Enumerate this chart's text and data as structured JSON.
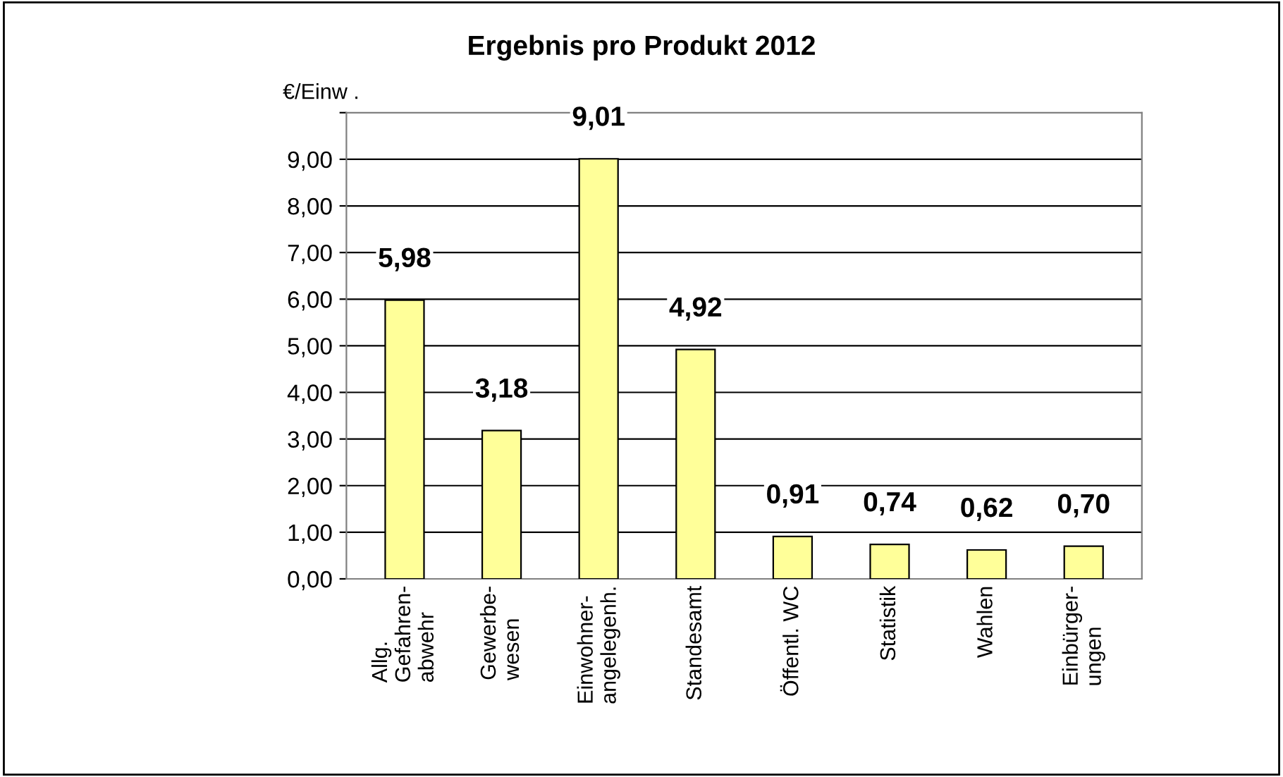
{
  "chart_data": {
    "type": "bar",
    "title": "Ergebnis pro Produkt 2012",
    "ylabel": "€/Einw .",
    "categories": [
      "Allg.\nGefahren-\nabwehr",
      "Gewerbe-\nwesen",
      "Einwohner-\nangelegenh.",
      "Standesamt",
      "Öffentl. WC",
      "Statistik",
      "Wahlen",
      "Einbürger-\nungen"
    ],
    "values": [
      5.98,
      3.18,
      9.01,
      4.92,
      0.91,
      0.74,
      0.62,
      0.7
    ],
    "value_labels": [
      "5,98",
      "3,18",
      "9,01",
      "4,92",
      "0,91",
      "0,74",
      "0,62",
      "0,70"
    ],
    "color": "#ffff99",
    "ylim": [
      0,
      10
    ],
    "yticks": [
      {
        "value": 0,
        "label": "0,00"
      },
      {
        "value": 1,
        "label": "1,00"
      },
      {
        "value": 2,
        "label": "2,00"
      },
      {
        "value": 3,
        "label": "3,00"
      },
      {
        "value": 4,
        "label": "4,00"
      },
      {
        "value": 5,
        "label": "5,00"
      },
      {
        "value": 6,
        "label": "6,00"
      },
      {
        "value": 7,
        "label": "7,00"
      },
      {
        "value": 8,
        "label": "8,00"
      },
      {
        "value": 9,
        "label": "9,00"
      },
      {
        "value": 10,
        "label": null
      }
    ],
    "grid": "y",
    "legend": false
  }
}
